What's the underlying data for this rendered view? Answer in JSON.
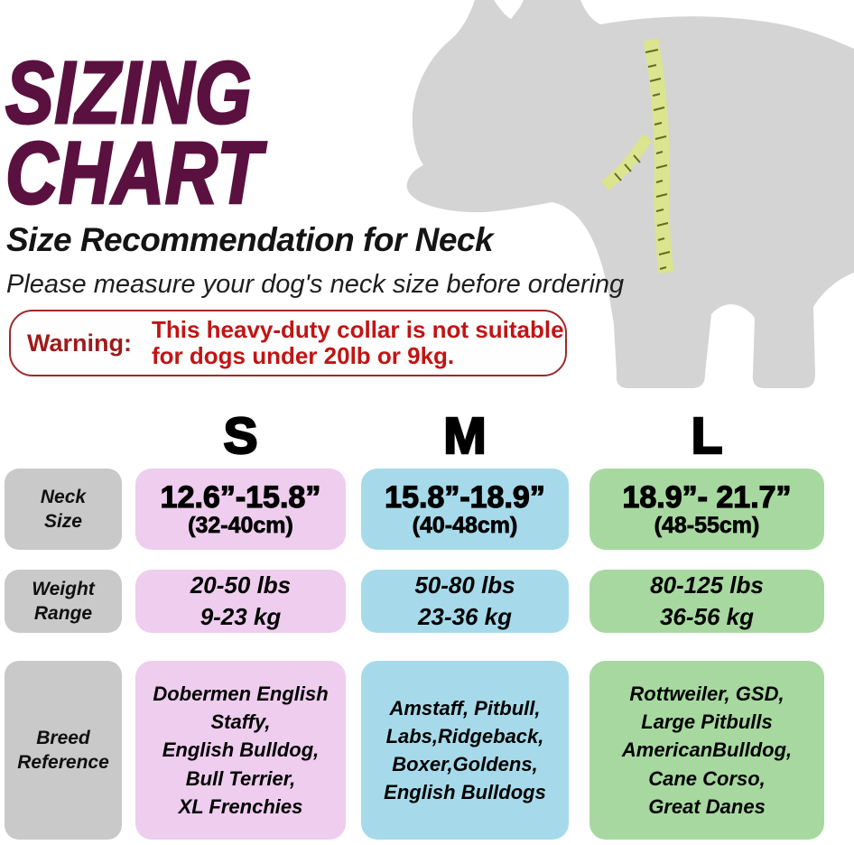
{
  "header": {
    "title_lines": [
      "SIZING",
      "CHART"
    ],
    "subtitle": "Size Recommendation for Neck",
    "note": "Please measure your dog's neck size before ordering"
  },
  "warning": {
    "label": "Warning:",
    "message_lines": [
      "This heavy-duty collar is not suitable",
      "for dogs under 20lb or 9kg."
    ]
  },
  "graphic": {
    "description": "gray dog silhouette with yellow-green measuring tape around neck"
  },
  "sizes": {
    "row_labels": [
      [
        "Neck",
        "Size"
      ],
      [
        "Weight",
        "Range"
      ],
      [
        "Breed",
        "Reference"
      ]
    ],
    "columns": [
      {
        "letter": "S",
        "neck_in": "12.6”-15.8”",
        "neck_cm": "(32-40cm)",
        "weight_lines": [
          "20-50 lbs",
          "9-23 kg"
        ],
        "breeds": [
          "Dobermen English",
          "Staffy,",
          "English Bulldog,",
          "Bull Terrier,",
          "XL Frenchies"
        ],
        "color": "#eecdee"
      },
      {
        "letter": "M",
        "neck_in": "15.8”-18.9”",
        "neck_cm": "(40-48cm)",
        "weight_lines": [
          "50-80 lbs",
          "23-36 kg"
        ],
        "breeds": [
          "Amstaff, Pitbull,",
          "Labs,Ridgeback,",
          "Boxer,Goldens,",
          "English Bulldogs"
        ],
        "color": "#a6daea"
      },
      {
        "letter": "L",
        "neck_in": "18.9”- 21.7”",
        "neck_cm": "(48-55cm)",
        "weight_lines": [
          "80-125 lbs",
          "36-56 kg"
        ],
        "breeds": [
          "Rottweiler, GSD,",
          "Large Pitbulls",
          "AmericanBulldog,",
          "Cane Corso,",
          "Great Danes"
        ],
        "color": "#a7d8a0"
      }
    ]
  },
  "colors": {
    "title": "#5a1140",
    "warning_label": "#9e1a1a",
    "warning_text": "#c21414",
    "warning_border": "#9c2a2a",
    "row_label_bg": "#c9c9c9",
    "dog_silhouette": "#d4d4d4",
    "measuring_tape": "#dbe48f"
  },
  "chart_data": {
    "type": "table",
    "title": "SIZING CHART",
    "subtitle": "Size Recommendation for Neck",
    "note": "Please measure your dog's neck size before ordering",
    "warning": "Warning: This heavy-duty collar is not suitable for dogs under 20lb or 9kg.",
    "columns": [
      "S",
      "M",
      "L"
    ],
    "rows": [
      {
        "label": "Neck Size",
        "S": "12.6”-15.8” (32-40cm)",
        "M": "15.8”-18.9” (40-48cm)",
        "L": "18.9”- 21.7” (48-55cm)"
      },
      {
        "label": "Weight Range",
        "S": "20-50 lbs 9-23 kg",
        "M": "50-80 lbs 23-36 kg",
        "L": "80-125 lbs 36-56 kg"
      },
      {
        "label": "Breed Reference",
        "S": "Dobermen English Staffy, English Bulldog, Bull Terrier, XL Frenchies",
        "M": "Amstaff, Pitbull, Labs,Ridgeback, Boxer,Goldens, English Bulldogs",
        "L": "Rottweiler, GSD, Large Pitbulls AmericanBulldog, Cane Corso, Great Danes"
      }
    ]
  }
}
